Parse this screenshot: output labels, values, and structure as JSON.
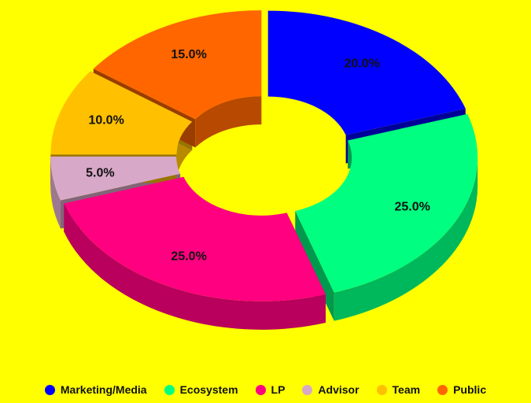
{
  "chart_data": {
    "type": "pie",
    "variant": "3d-donut-exploded",
    "background": "#ffff00",
    "legend_position": "bottom",
    "categories": [
      "Marketing/Media",
      "Ecosystem",
      "LP",
      "Advisor",
      "Team",
      "Public"
    ],
    "values": [
      20.0,
      25.0,
      25.0,
      5.0,
      10.0,
      15.0
    ],
    "labels": [
      "20.0%",
      "25.0%",
      "25.0%",
      "5.0%",
      "10.0%",
      "15.0%"
    ],
    "colors": [
      "#0000ff",
      "#00ff80",
      "#ff0080",
      "#d8a8c8",
      "#ffc000",
      "#ff6600"
    ]
  }
}
